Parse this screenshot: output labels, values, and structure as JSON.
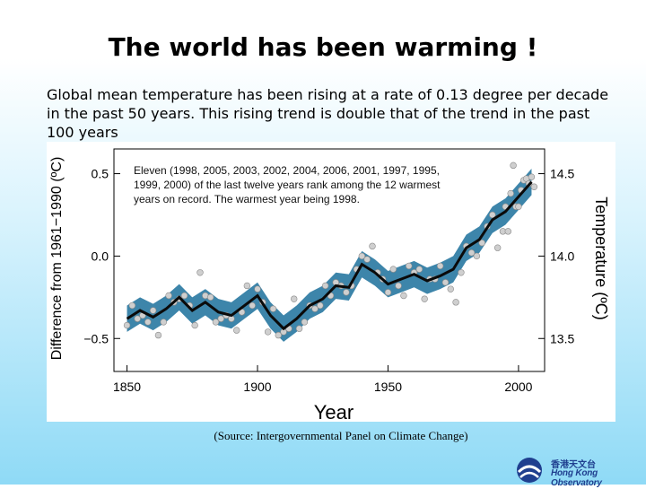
{
  "slide": {
    "title": "The world has been warming !",
    "subtitle": "Global mean temperature has been rising at a rate of 0.13 degree per decade in the past 50 years.  This rising trend is double that of the trend in the past 100 years",
    "source": "(Source: Intergovernmental Panel on Climate Change)",
    "logo_zh": "香港天文台",
    "logo_en": "Hong Kong Observatory"
  },
  "colors": {
    "band": "#3d85aa",
    "line": "#0a0a0a",
    "point": "#cfcfcf",
    "logo": "#1f3f8f"
  },
  "chart_data": {
    "type": "line",
    "title": "",
    "xlabel": "Year",
    "ylabel_left": "Difference from 1961−1990 (ºC)",
    "ylabel_right": "Temperature (ºC)",
    "annotation": "Eleven (1998, 2005, 2003, 2002, 2004, 2006, 2001, 1997, 1995, 1999, 2000) of the last twelve years rank among the 12 warmest years on record. The warmest year being 1998.",
    "xlim": [
      1845,
      2010
    ],
    "ylim": [
      -0.7,
      0.65
    ],
    "x_ticks": [
      1850,
      1900,
      1950,
      2000
    ],
    "y_ticks_left": [
      -0.5,
      0.0,
      0.5
    ],
    "y_tick_labels_left": [
      "−0.5",
      "0.0",
      "0.5"
    ],
    "y_ticks_right": [
      -0.5,
      0.0,
      0.5
    ],
    "y_tick_labels_right": [
      "13.5",
      "14.0",
      "14.5"
    ],
    "smoothed": {
      "x": [
        1850,
        1855,
        1860,
        1865,
        1870,
        1875,
        1880,
        1885,
        1890,
        1895,
        1900,
        1905,
        1910,
        1915,
        1920,
        1925,
        1930,
        1935,
        1940,
        1945,
        1950,
        1955,
        1960,
        1965,
        1970,
        1975,
        1980,
        1985,
        1990,
        1995,
        2000,
        2005
      ],
      "y": [
        -0.38,
        -0.33,
        -0.37,
        -0.32,
        -0.25,
        -0.33,
        -0.28,
        -0.34,
        -0.36,
        -0.3,
        -0.24,
        -0.36,
        -0.44,
        -0.38,
        -0.3,
        -0.26,
        -0.18,
        -0.19,
        -0.05,
        -0.1,
        -0.17,
        -0.14,
        -0.11,
        -0.15,
        -0.12,
        -0.08,
        0.05,
        0.1,
        0.22,
        0.27,
        0.36,
        0.45
      ]
    },
    "band_halfwidth": 0.08,
    "annual": {
      "x": [
        1850,
        1852,
        1854,
        1856,
        1858,
        1860,
        1862,
        1864,
        1866,
        1868,
        1870,
        1872,
        1874,
        1876,
        1878,
        1880,
        1882,
        1884,
        1886,
        1888,
        1890,
        1892,
        1894,
        1896,
        1898,
        1900,
        1902,
        1904,
        1906,
        1908,
        1910,
        1912,
        1914,
        1916,
        1918,
        1920,
        1922,
        1924,
        1926,
        1928,
        1930,
        1932,
        1934,
        1936,
        1938,
        1940,
        1942,
        1944,
        1946,
        1948,
        1950,
        1952,
        1954,
        1956,
        1958,
        1960,
        1962,
        1964,
        1966,
        1968,
        1970,
        1972,
        1974,
        1976,
        1978,
        1980,
        1982,
        1984,
        1986,
        1988,
        1990,
        1992,
        1994,
        1995,
        1996,
        1997,
        1998,
        1999,
        2000,
        2001,
        2002,
        2003,
        2004,
        2005,
        2006
      ],
      "y": [
        -0.42,
        -0.3,
        -0.38,
        -0.36,
        -0.4,
        -0.33,
        -0.48,
        -0.4,
        -0.24,
        -0.28,
        -0.26,
        -0.24,
        -0.3,
        -0.42,
        -0.1,
        -0.24,
        -0.25,
        -0.4,
        -0.38,
        -0.36,
        -0.38,
        -0.45,
        -0.34,
        -0.18,
        -0.3,
        -0.2,
        -0.28,
        -0.46,
        -0.32,
        -0.48,
        -0.46,
        -0.44,
        -0.26,
        -0.44,
        -0.4,
        -0.3,
        -0.32,
        -0.3,
        -0.18,
        -0.24,
        -0.16,
        -0.18,
        -0.22,
        -0.18,
        -0.08,
        0.0,
        -0.02,
        0.06,
        -0.1,
        -0.14,
        -0.22,
        -0.08,
        -0.18,
        -0.24,
        -0.06,
        -0.1,
        -0.08,
        -0.26,
        -0.14,
        -0.14,
        -0.06,
        -0.16,
        -0.2,
        -0.28,
        -0.1,
        0.06,
        0.02,
        0.0,
        0.08,
        0.18,
        0.25,
        0.05,
        0.15,
        0.3,
        0.15,
        0.38,
        0.55,
        0.3,
        0.3,
        0.4,
        0.46,
        0.47,
        0.44,
        0.48,
        0.42
      ]
    }
  }
}
